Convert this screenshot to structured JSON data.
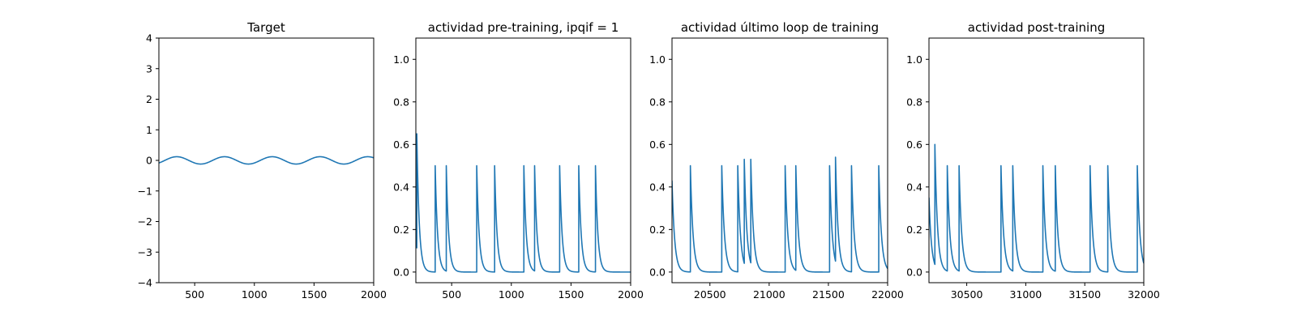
{
  "colors": {
    "series": "#1f77b4",
    "axes": "#000000",
    "background": "#ffffff"
  },
  "chart_data": [
    {
      "type": "line",
      "title": "Target",
      "xlim": [
        200,
        2000
      ],
      "ylim": [
        -4,
        4
      ],
      "xticks": [
        500,
        1000,
        1500,
        2000
      ],
      "yticks": [
        -4,
        -3,
        -2,
        -1,
        0,
        1,
        2,
        3,
        4
      ],
      "xtick_labels": [
        "500",
        "1000",
        "1500",
        "2000"
      ],
      "ytick_labels": [
        "−4",
        "−3",
        "−2",
        "−1",
        "0",
        "1",
        "2",
        "3",
        "4"
      ],
      "grid": false,
      "series": [
        {
          "kind": "sine",
          "amplitude": 0.12,
          "period": 400,
          "peak_at": 350,
          "x_range": [
            200,
            2000
          ]
        }
      ]
    },
    {
      "type": "line",
      "title": "actividad pre-training, ipqif = 1",
      "xlim": [
        200,
        2000
      ],
      "ylim": [
        -0.05,
        1.1
      ],
      "xticks": [
        500,
        1000,
        1500,
        2000
      ],
      "yticks": [
        0.0,
        0.2,
        0.4,
        0.6,
        0.8,
        1.0
      ],
      "xtick_labels": [
        "500",
        "1000",
        "1500",
        "2000"
      ],
      "ytick_labels": [
        "0.0",
        "0.2",
        "0.4",
        "0.6",
        "0.8",
        "1.0"
      ],
      "grid": false,
      "series": [
        {
          "kind": "spikes",
          "start_value": 0.17,
          "decay": 20,
          "x_range": [
            200,
            2000
          ],
          "spikes": [
            [
              208,
              0.65
            ],
            [
              362,
              0.5
            ],
            [
              455,
              0.5
            ],
            [
              710,
              0.5
            ],
            [
              860,
              0.5
            ],
            [
              1105,
              0.5
            ],
            [
              1195,
              0.5
            ],
            [
              1405,
              0.5
            ],
            [
              1565,
              0.5
            ],
            [
              1705,
              0.5
            ]
          ]
        }
      ]
    },
    {
      "type": "line",
      "title": "actividad último loop de training",
      "xlim": [
        20180,
        22000
      ],
      "ylim": [
        -0.05,
        1.1
      ],
      "xticks": [
        20500,
        21000,
        21500,
        22000
      ],
      "yticks": [
        0.0,
        0.2,
        0.4,
        0.6,
        0.8,
        1.0
      ],
      "xtick_labels": [
        "20500",
        "21000",
        "21500",
        "22000"
      ],
      "ytick_labels": [
        "0.0",
        "0.2",
        "0.4",
        "0.6",
        "0.8",
        "1.0"
      ],
      "grid": false,
      "series": [
        {
          "kind": "spikes",
          "start_value": 0.43,
          "decay": 22,
          "x_range": [
            20180,
            22000
          ],
          "spikes": [
            [
              20335,
              0.5
            ],
            [
              20600,
              0.5
            ],
            [
              20735,
              0.5
            ],
            [
              20790,
              0.53
            ],
            [
              20845,
              0.53
            ],
            [
              21135,
              0.5
            ],
            [
              21225,
              0.5
            ],
            [
              21510,
              0.5
            ],
            [
              21560,
              0.54
            ],
            [
              21695,
              0.5
            ],
            [
              21925,
              0.5
            ]
          ]
        }
      ]
    },
    {
      "type": "line",
      "title": "actividad post-training",
      "xlim": [
        30180,
        32000
      ],
      "ylim": [
        -0.05,
        1.1
      ],
      "xticks": [
        30500,
        31000,
        31500,
        32000
      ],
      "yticks": [
        0.0,
        0.2,
        0.4,
        0.6,
        0.8,
        1.0
      ],
      "xtick_labels": [
        "30500",
        "31000",
        "31500",
        "32000"
      ],
      "ytick_labels": [
        "0.0",
        "0.2",
        "0.4",
        "0.6",
        "0.8",
        "1.0"
      ],
      "grid": false,
      "series": [
        {
          "kind": "spikes",
          "start_value": 0.35,
          "decay": 22,
          "x_range": [
            30180,
            32000
          ],
          "spikes": [
            [
              30230,
              0.6
            ],
            [
              30335,
              0.5
            ],
            [
              30435,
              0.5
            ],
            [
              30790,
              0.5
            ],
            [
              30890,
              0.5
            ],
            [
              31145,
              0.5
            ],
            [
              31250,
              0.5
            ],
            [
              31545,
              0.5
            ],
            [
              31695,
              0.5
            ],
            [
              31945,
              0.5
            ]
          ]
        }
      ]
    }
  ]
}
